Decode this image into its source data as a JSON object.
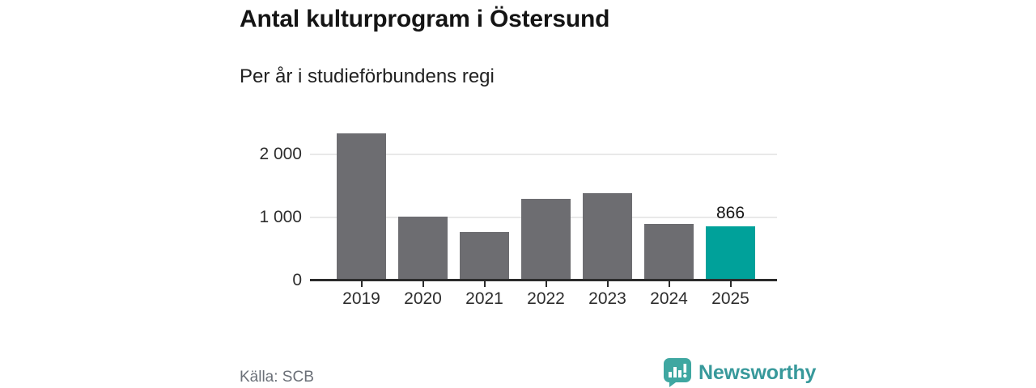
{
  "chart_data": {
    "type": "bar",
    "title": "Antal kulturprogram i Östersund",
    "subtitle": "Per år i studieförbundens regi",
    "categories": [
      "2019",
      "2020",
      "2021",
      "2022",
      "2023",
      "2024",
      "2025"
    ],
    "values": [
      2335,
      1010,
      775,
      1295,
      1390,
      900,
      866
    ],
    "highlight_index": 6,
    "value_labels": {
      "6": "866"
    },
    "yticks": [
      {
        "value": 0,
        "label": "0"
      },
      {
        "value": 1000,
        "label": "1 000"
      },
      {
        "value": 2000,
        "label": "2 000"
      }
    ],
    "ylim": [
      0,
      2530
    ],
    "grid": "horizontal",
    "legend": "none",
    "bar_color": "#6d6d71",
    "highlight_color": "#00a19a",
    "axis_color": "#2b2b2b",
    "gridline_color": "#e9e9e9",
    "label_color": "#2d2d2d"
  },
  "source": {
    "label": "Källa: SCB"
  },
  "logo": {
    "text": "Newsworthy",
    "color": "#38999b",
    "icon_color": "#3fa7a1"
  }
}
